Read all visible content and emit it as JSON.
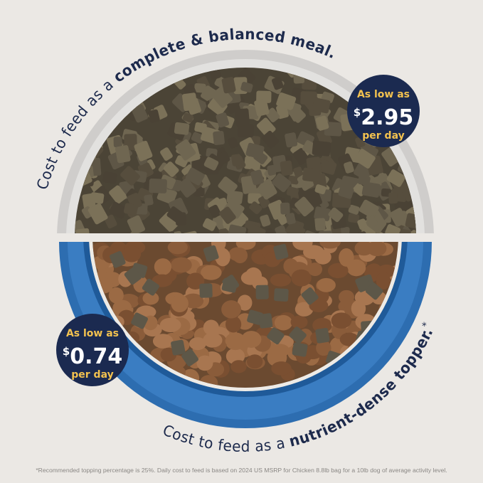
{
  "top_caption": {
    "prefix": "Cost to feed as a ",
    "emphasis": "complete & balanced meal."
  },
  "bottom_caption": {
    "prefix": "Cost to feed as a ",
    "emphasis": "nutrient-dense topper.",
    "mark": "*"
  },
  "badges": [
    {
      "line1": "As low as",
      "currency": "$",
      "price": "2.95",
      "line3": "per day"
    },
    {
      "line1": "As low as",
      "currency": "$",
      "price": "0.74",
      "line3": "per day"
    }
  ],
  "footnote": "*Recommended topping percentage is 25%. Daily cost to feed is based on 2024 US MSRP for Chicken 8.8lb bag for a 10lb dog of average activity level.",
  "colors": {
    "background": "#ebe8e4",
    "navy": "#1b2a50",
    "gold": "#f3c24f",
    "blue_bowl": "#2f6fb3",
    "grey_bowl": "#d4d2d0"
  }
}
